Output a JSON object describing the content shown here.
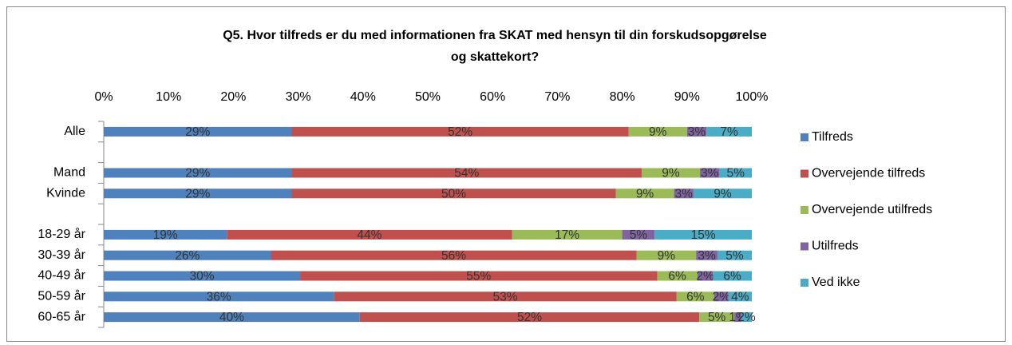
{
  "chart_data": {
    "type": "stacked_bar_horizontal",
    "title": "Q5. Hvor tilfreds er du med informationen fra SKAT med hensyn til din forskudsopgørelse og skattekort?",
    "categories": [
      "Alle",
      null,
      "Mand",
      "Kvinde",
      null,
      "18-29 år",
      "30-39 år",
      "40-49 år",
      "50-59 år",
      "60-65 år"
    ],
    "series": [
      {
        "name": "Tilfreds",
        "color": "#4f81bd",
        "values": [
          29,
          null,
          29,
          29,
          null,
          19,
          25.8,
          30.3,
          35.5,
          39.5
        ],
        "value_labels": [
          "29%",
          null,
          "29%",
          "29%",
          null,
          "19%",
          "26%",
          "30%",
          "36%",
          "40%"
        ]
      },
      {
        "name": "Overvejende tilfreds",
        "color": "#c0504d",
        "values": [
          52,
          null,
          54,
          50,
          null,
          44,
          56.4,
          55.1,
          52.9,
          52.4
        ],
        "value_labels": [
          "52%",
          null,
          "54%",
          "50%",
          null,
          "44%",
          "56%",
          "55%",
          "53%",
          "52%"
        ]
      },
      {
        "name": "Overvejende utilfreds",
        "color": "#9bbb59",
        "values": [
          9,
          null,
          9,
          9,
          null,
          17,
          9.2,
          6.2,
          5.8,
          5.4
        ],
        "value_labels": [
          "9%",
          null,
          "9%",
          "9%",
          null,
          "17%",
          "9%",
          "6%",
          "6%",
          "5%"
        ]
      },
      {
        "name": "Utilfreds",
        "color": "#8064a2",
        "values": [
          3,
          null,
          3,
          3,
          null,
          5,
          3.3,
          2.4,
          2.2,
          1.1
        ],
        "value_labels": [
          "3%",
          null,
          "3%",
          "3%",
          null,
          "5%",
          "3%",
          "2%",
          "2%",
          "1%"
        ]
      },
      {
        "name": "Ved ikke",
        "color": "#4bacc6",
        "values": [
          7,
          null,
          5,
          9,
          null,
          15,
          5.3,
          6.0,
          3.6,
          1.6
        ],
        "value_labels": [
          "7%",
          null,
          "5%",
          "9%",
          null,
          "15%",
          "5%",
          "6%",
          "4%",
          "2%"
        ]
      }
    ],
    "xlim": [
      0,
      100
    ],
    "xticks": [
      {
        "value": 0,
        "label": "0%"
      },
      {
        "value": 10,
        "label": "10%"
      },
      {
        "value": 20,
        "label": "20%"
      },
      {
        "value": 30,
        "label": "30%"
      },
      {
        "value": 40,
        "label": "40%"
      },
      {
        "value": 50,
        "label": "50%"
      },
      {
        "value": 60,
        "label": "60%"
      },
      {
        "value": 70,
        "label": "70%"
      },
      {
        "value": 80,
        "label": "80%"
      },
      {
        "value": 90,
        "label": "90%"
      },
      {
        "value": 100,
        "label": "100%"
      }
    ],
    "legend": "right"
  }
}
